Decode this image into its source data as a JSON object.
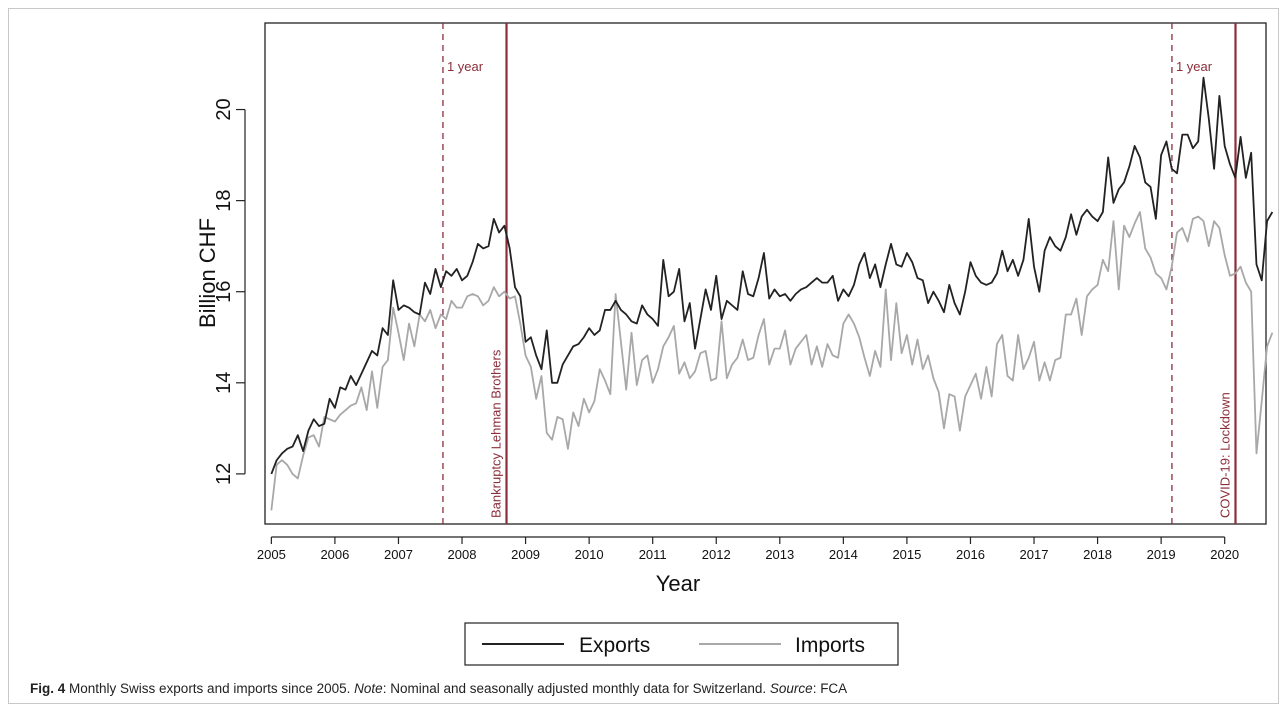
{
  "chart_data": {
    "type": "line",
    "xlabel": "Year",
    "ylabel": "Billion CHF",
    "xlim": [
      2004.9,
      2020.65
    ],
    "ylim": [
      10.9,
      21.9
    ],
    "x_ticks": [
      2005,
      2006,
      2007,
      2008,
      2009,
      2010,
      2011,
      2012,
      2013,
      2014,
      2015,
      2016,
      2017,
      2018,
      2019,
      2020
    ],
    "x_tick_labels": [
      "2005",
      "2006",
      "2007",
      "2008",
      "2009",
      "2010",
      "2011",
      "2012",
      "2013",
      "2014",
      "2015",
      "2016",
      "2017",
      "2018",
      "2019",
      "2020"
    ],
    "y_ticks": [
      12,
      14,
      16,
      18,
      20
    ],
    "y_tick_labels": [
      "12",
      "14",
      "16",
      "18",
      "20"
    ],
    "grid": false,
    "legend_position": "bottom",
    "x_start": 2005.0,
    "x_step": 0.0833333,
    "series": [
      {
        "name": "Exports",
        "color": "#222222",
        "values": [
          12.0,
          12.3,
          12.45,
          12.55,
          12.6,
          12.85,
          12.5,
          12.95,
          13.2,
          13.05,
          13.1,
          13.65,
          13.45,
          13.9,
          13.85,
          14.15,
          13.95,
          14.2,
          14.45,
          14.7,
          14.6,
          15.2,
          15.05,
          16.25,
          15.6,
          15.7,
          15.65,
          15.55,
          15.5,
          16.2,
          15.95,
          16.5,
          16.1,
          16.45,
          16.35,
          16.5,
          16.25,
          16.35,
          16.65,
          17.05,
          16.95,
          17.0,
          17.6,
          17.3,
          17.45,
          16.95,
          16.1,
          15.9,
          14.9,
          15.0,
          14.6,
          14.3,
          15.15,
          14.0,
          14.0,
          14.4,
          14.6,
          14.8,
          14.85,
          15.0,
          15.2,
          15.05,
          15.15,
          15.6,
          15.6,
          15.8,
          15.6,
          15.5,
          15.35,
          15.3,
          15.7,
          15.5,
          15.4,
          15.25,
          16.7,
          15.9,
          16.0,
          16.5,
          15.35,
          15.75,
          14.75,
          15.4,
          16.05,
          15.6,
          16.35,
          15.4,
          15.8,
          15.7,
          15.6,
          16.45,
          15.95,
          15.9,
          16.3,
          16.85,
          15.85,
          16.05,
          15.9,
          15.95,
          15.8,
          15.95,
          16.05,
          16.1,
          16.2,
          16.3,
          16.2,
          16.2,
          16.35,
          15.8,
          16.05,
          15.9,
          16.15,
          16.6,
          16.85,
          16.3,
          16.6,
          16.1,
          16.6,
          17.05,
          16.6,
          16.55,
          16.85,
          16.65,
          16.3,
          16.25,
          15.75,
          16.0,
          15.8,
          15.55,
          16.15,
          15.75,
          15.5,
          16.0,
          16.65,
          16.35,
          16.2,
          16.15,
          16.2,
          16.4,
          16.9,
          16.45,
          16.7,
          16.35,
          16.7,
          17.6,
          16.55,
          16.0,
          16.9,
          17.2,
          17.0,
          16.9,
          17.2,
          17.7,
          17.25,
          17.65,
          17.8,
          17.65,
          17.55,
          17.75,
          18.95,
          17.95,
          18.25,
          18.4,
          18.75,
          19.2,
          18.95,
          18.4,
          18.3,
          17.6,
          19.0,
          19.3,
          18.7,
          18.6,
          19.45,
          19.45,
          19.15,
          19.3,
          20.7,
          19.8,
          18.7,
          20.3,
          19.2,
          18.8,
          18.5,
          19.4,
          18.5,
          19.05,
          16.6,
          16.25,
          17.55,
          17.75
        ]
      },
      {
        "name": "Imports",
        "color": "#a8a8a8",
        "values": [
          11.2,
          12.2,
          12.3,
          12.2,
          12.0,
          11.9,
          12.4,
          12.8,
          12.85,
          12.6,
          13.25,
          13.2,
          13.15,
          13.3,
          13.4,
          13.5,
          13.55,
          13.9,
          13.4,
          14.25,
          13.45,
          14.35,
          14.5,
          15.65,
          15.1,
          14.5,
          15.3,
          14.8,
          15.5,
          15.35,
          15.6,
          15.2,
          15.5,
          15.4,
          15.8,
          15.65,
          15.65,
          15.9,
          15.95,
          15.9,
          15.7,
          15.8,
          16.1,
          15.9,
          16.0,
          15.85,
          15.9,
          15.3,
          14.6,
          14.35,
          13.65,
          14.15,
          12.9,
          12.75,
          13.25,
          13.2,
          12.55,
          13.35,
          13.05,
          13.65,
          13.35,
          13.6,
          14.3,
          14.05,
          13.75,
          15.95,
          14.9,
          13.85,
          15.1,
          13.95,
          14.5,
          14.6,
          14.0,
          14.3,
          14.8,
          15.0,
          15.25,
          14.2,
          14.45,
          14.1,
          14.25,
          14.65,
          14.7,
          14.05,
          14.1,
          15.35,
          14.1,
          14.4,
          14.55,
          14.95,
          14.5,
          14.55,
          15.05,
          15.4,
          14.4,
          14.75,
          14.75,
          15.15,
          14.4,
          14.75,
          14.9,
          15.05,
          14.4,
          14.8,
          14.35,
          14.85,
          14.6,
          14.55,
          15.3,
          15.5,
          15.3,
          15.0,
          14.55,
          14.15,
          14.7,
          14.35,
          16.05,
          14.5,
          15.75,
          14.65,
          15.05,
          14.4,
          14.95,
          14.3,
          14.6,
          14.1,
          13.8,
          13.0,
          13.75,
          13.7,
          12.95,
          13.7,
          13.95,
          14.2,
          13.65,
          14.35,
          13.7,
          14.85,
          15.05,
          14.15,
          14.05,
          15.05,
          14.3,
          14.55,
          14.9,
          14.05,
          14.45,
          14.05,
          14.5,
          14.55,
          15.5,
          15.5,
          15.85,
          15.05,
          15.9,
          16.05,
          16.15,
          16.7,
          16.45,
          17.55,
          16.05,
          17.45,
          17.2,
          17.5,
          17.75,
          16.95,
          16.75,
          16.4,
          16.3,
          16.05,
          16.55,
          17.3,
          17.4,
          17.1,
          17.6,
          17.65,
          17.55,
          17.0,
          17.55,
          17.4,
          16.8,
          16.35,
          16.4,
          16.55,
          16.2,
          16.0,
          12.45,
          13.6,
          14.8,
          15.1
        ]
      }
    ],
    "vertical_lines": [
      {
        "x": 2008.7,
        "style": "solid",
        "label": "Bankruptcy Lehman Brothers"
      },
      {
        "x": 2007.7,
        "style": "dashed",
        "label": "1 year"
      },
      {
        "x": 2020.17,
        "style": "solid",
        "label": "COVID-19: Lockdown"
      },
      {
        "x": 2019.17,
        "style": "dashed",
        "label": "1 year"
      }
    ],
    "event_color": "#8b2e3a"
  },
  "caption": {
    "fig": "Fig. 4",
    "text": " Monthly Swiss exports and imports since 2005. ",
    "note_label": "Note",
    "note_text": ": Nominal and seasonally adjusted monthly data for Switzerland. ",
    "source_label": "Source",
    "source_text": ": FCA"
  }
}
